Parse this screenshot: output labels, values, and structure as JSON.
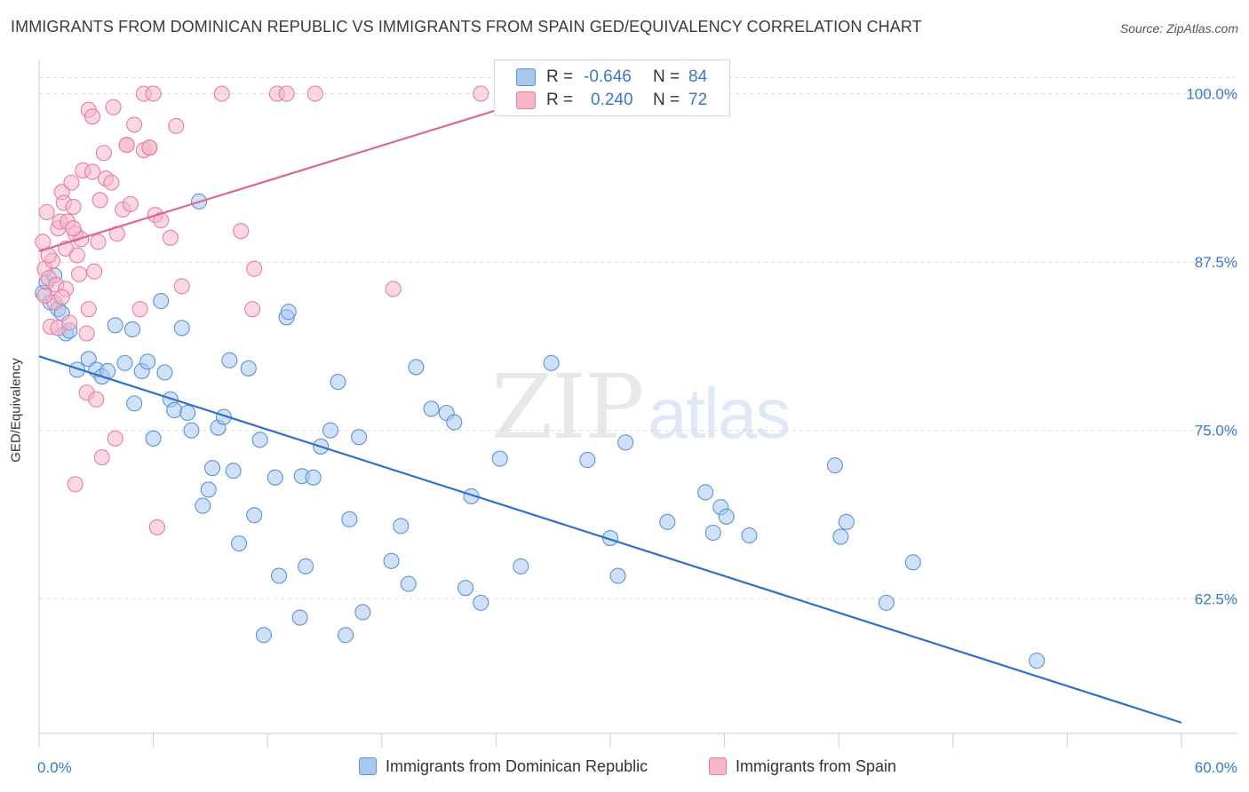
{
  "title": "IMMIGRANTS FROM DOMINICAN REPUBLIC VS IMMIGRANTS FROM SPAIN GED/EQUIVALENCY CORRELATION CHART",
  "source": "Source: ZipAtlas.com",
  "watermark": {
    "zip": "ZIP",
    "atlas": "atlas"
  },
  "stats": {
    "row1": {
      "r_label": "R =",
      "r_value": "-0.646",
      "n_label": "N =",
      "n_value": "84"
    },
    "row2": {
      "r_label": "R =",
      "r_value": "0.240",
      "n_label": "N =",
      "n_value": "72"
    }
  },
  "legend": {
    "series1": "Immigrants from Dominican Republic",
    "series2": "Immigrants from Spain"
  },
  "colors": {
    "blue_fill": "#a9c8f0",
    "blue_stroke": "#5b93d8",
    "blue_line": "#2e6fce",
    "pink_fill": "#f6b7c9",
    "pink_stroke": "#e57fa0",
    "pink_line": "#e06690",
    "tick_text": "#3a78c9",
    "grid": "#d9d9d9"
  },
  "chart_data": {
    "type": "scatter",
    "xlabel": "",
    "ylabel": "GED/Equivalency",
    "xlim": [
      0,
      60
    ],
    "ylim": [
      52.5,
      103
    ],
    "x_tick_labels": [
      "0.0%",
      "60.0%"
    ],
    "y_ticks": [
      62.5,
      75.0,
      87.5,
      100.0
    ],
    "y_tick_labels": [
      "62.5%",
      "75.0%",
      "87.5%",
      "100.0%"
    ],
    "grid": "horizontal dashed",
    "legend_position": "bottom",
    "series": [
      {
        "name": "Immigrants from Dominican Republic",
        "trend": {
          "x": [
            0,
            60
          ],
          "y": [
            80.5,
            53.3
          ]
        },
        "points": [
          [
            0.2,
            85.2
          ],
          [
            0.4,
            86.0
          ],
          [
            0.6,
            84.5
          ],
          [
            0.8,
            86.5
          ],
          [
            1.0,
            84.0
          ],
          [
            1.2,
            83.7
          ],
          [
            1.4,
            82.2
          ],
          [
            1.6,
            82.4
          ],
          [
            2.0,
            79.5
          ],
          [
            2.6,
            80.3
          ],
          [
            3.0,
            79.5
          ],
          [
            3.3,
            79.0
          ],
          [
            3.6,
            79.4
          ],
          [
            4.0,
            82.8
          ],
          [
            4.5,
            80.0
          ],
          [
            5.0,
            77.0
          ],
          [
            4.9,
            82.5
          ],
          [
            5.4,
            79.4
          ],
          [
            5.7,
            80.1
          ],
          [
            6.0,
            74.4
          ],
          [
            6.4,
            84.6
          ],
          [
            6.6,
            79.3
          ],
          [
            6.9,
            77.3
          ],
          [
            7.1,
            76.5
          ],
          [
            7.5,
            82.6
          ],
          [
            7.8,
            76.3
          ],
          [
            8.0,
            75.0
          ],
          [
            8.4,
            92.0
          ],
          [
            8.6,
            69.4
          ],
          [
            8.9,
            70.6
          ],
          [
            9.1,
            72.2
          ],
          [
            9.4,
            75.2
          ],
          [
            9.7,
            76.0
          ],
          [
            10.0,
            80.2
          ],
          [
            10.2,
            72.0
          ],
          [
            10.5,
            66.6
          ],
          [
            11.0,
            79.6
          ],
          [
            11.3,
            68.7
          ],
          [
            11.6,
            74.3
          ],
          [
            11.8,
            59.8
          ],
          [
            12.4,
            71.5
          ],
          [
            12.6,
            64.2
          ],
          [
            13.0,
            83.4
          ],
          [
            13.1,
            83.8
          ],
          [
            13.7,
            61.1
          ],
          [
            13.8,
            71.6
          ],
          [
            14.0,
            64.9
          ],
          [
            14.4,
            71.5
          ],
          [
            14.8,
            73.8
          ],
          [
            15.3,
            75.0
          ],
          [
            15.7,
            78.6
          ],
          [
            16.1,
            59.8
          ],
          [
            16.3,
            68.4
          ],
          [
            16.8,
            74.5
          ],
          [
            17.0,
            61.5
          ],
          [
            18.5,
            65.3
          ],
          [
            19.0,
            67.9
          ],
          [
            19.4,
            63.6
          ],
          [
            19.8,
            79.7
          ],
          [
            20.6,
            76.6
          ],
          [
            21.4,
            76.3
          ],
          [
            21.8,
            75.6
          ],
          [
            22.4,
            63.3
          ],
          [
            22.7,
            70.1
          ],
          [
            23.2,
            62.2
          ],
          [
            24.2,
            72.9
          ],
          [
            25.3,
            64.9
          ],
          [
            26.9,
            80.0
          ],
          [
            28.8,
            72.8
          ],
          [
            30.0,
            67.0
          ],
          [
            30.4,
            64.2
          ],
          [
            30.8,
            74.1
          ],
          [
            33.0,
            68.2
          ],
          [
            35.0,
            70.4
          ],
          [
            35.4,
            67.4
          ],
          [
            35.8,
            69.3
          ],
          [
            36.1,
            68.6
          ],
          [
            37.3,
            67.2
          ],
          [
            41.8,
            72.4
          ],
          [
            42.1,
            67.1
          ],
          [
            42.4,
            68.2
          ],
          [
            44.5,
            62.2
          ],
          [
            45.9,
            65.2
          ],
          [
            52.4,
            57.9
          ]
        ]
      },
      {
        "name": "Immigrants from Spain",
        "trend": {
          "x": [
            0,
            25
          ],
          "y": [
            88.3,
            99.2
          ]
        },
        "points": [
          [
            0.2,
            89.0
          ],
          [
            0.3,
            87.0
          ],
          [
            0.4,
            91.2
          ],
          [
            0.5,
            86.3
          ],
          [
            0.6,
            82.7
          ],
          [
            0.7,
            87.6
          ],
          [
            0.8,
            84.5
          ],
          [
            0.9,
            85.8
          ],
          [
            1.0,
            82.6
          ],
          [
            1.0,
            90.0
          ],
          [
            1.1,
            90.5
          ],
          [
            1.2,
            92.7
          ],
          [
            1.3,
            91.9
          ],
          [
            1.4,
            88.5
          ],
          [
            1.5,
            90.5
          ],
          [
            1.6,
            83.0
          ],
          [
            1.7,
            93.4
          ],
          [
            1.8,
            91.6
          ],
          [
            1.9,
            89.6
          ],
          [
            2.0,
            88.0
          ],
          [
            2.1,
            86.6
          ],
          [
            2.2,
            89.2
          ],
          [
            2.3,
            94.3
          ],
          [
            2.5,
            82.2
          ],
          [
            2.5,
            77.8
          ],
          [
            2.6,
            98.8
          ],
          [
            2.8,
            98.3
          ],
          [
            2.9,
            86.8
          ],
          [
            3.1,
            89.0
          ],
          [
            3.2,
            92.1
          ],
          [
            3.4,
            95.6
          ],
          [
            3.5,
            93.7
          ],
          [
            3.8,
            93.4
          ],
          [
            4.1,
            89.6
          ],
          [
            4.4,
            91.4
          ],
          [
            4.6,
            96.2
          ],
          [
            4.8,
            91.8
          ],
          [
            5.0,
            97.7
          ],
          [
            5.3,
            84.0
          ],
          [
            5.5,
            95.8
          ],
          [
            5.8,
            96.0
          ],
          [
            6.1,
            91.0
          ],
          [
            6.4,
            90.6
          ],
          [
            6.9,
            89.3
          ],
          [
            7.2,
            97.6
          ],
          [
            7.5,
            85.7
          ],
          [
            9.6,
            100.0
          ],
          [
            10.6,
            89.8
          ],
          [
            11.2,
            84.0
          ],
          [
            11.3,
            87.0
          ],
          [
            12.5,
            100.0
          ],
          [
            13.0,
            100.0
          ],
          [
            14.5,
            100.0
          ],
          [
            18.6,
            85.5
          ],
          [
            23.2,
            100.0
          ],
          [
            3.9,
            99.0
          ],
          [
            2.8,
            94.2
          ],
          [
            5.5,
            100.0
          ],
          [
            6.0,
            100.0
          ],
          [
            1.8,
            90.0
          ],
          [
            4.0,
            74.4
          ],
          [
            3.3,
            73.0
          ],
          [
            1.9,
            71.0
          ],
          [
            3.0,
            77.3
          ],
          [
            6.2,
            67.8
          ],
          [
            0.3,
            85.0
          ],
          [
            0.5,
            88.0
          ],
          [
            1.4,
            85.5
          ],
          [
            1.2,
            84.9
          ],
          [
            2.6,
            84.0
          ],
          [
            5.8,
            96.0
          ],
          [
            4.6,
            96.2
          ]
        ]
      }
    ]
  }
}
